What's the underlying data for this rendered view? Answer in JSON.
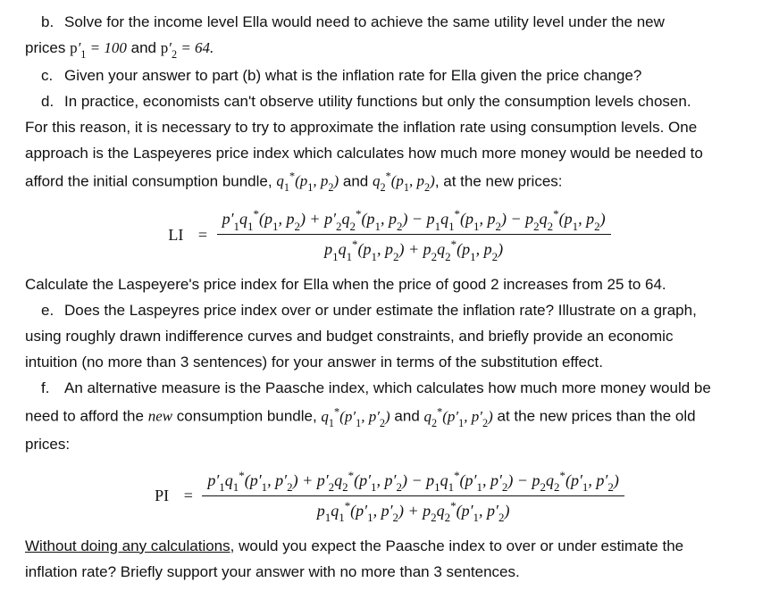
{
  "b": {
    "letter": "b.",
    "text_before": "Solve for the income level Ella would need to achieve the same utility level under the new",
    "text_line2_before": "prices ",
    "eq1_lhs": "p′₁ = 100",
    "and": " and ",
    "eq2_lhs": "p′₂ = 64.",
    "text_line2_after": ""
  },
  "c": {
    "letter": "c.",
    "text": "Given your answer to part (b) what is the inflation rate for Ella given the price change?"
  },
  "d": {
    "letter": "d.",
    "line1": "In practice, economists can't observe utility functions but only the consumption levels chosen.",
    "line2": "For this reason, it is necessary to try to approximate the inflation rate using consumption levels.  One",
    "line3": "approach is the Laspeyeres price index which calculates how much more money would be needed to",
    "line4_before": "afford the initial consumption bundle, ",
    "line4_q1": "q₁*(p₁, p₂)",
    "line4_and": " and ",
    "line4_q2": "q₂*(p₁, p₂)",
    "line4_after": ", at the new prices:"
  },
  "li_formula": {
    "label": "LI",
    "num": "p′₁q₁*(p₁, p₂) + p′₂q₂*(p₁, p₂) − p₁q₁*(p₁, p₂) − p₂q₂*(p₁, p₂)",
    "den": "p₁q₁*(p₁, p₂) + p₂q₂*(p₁, p₂)"
  },
  "calc_line": "Calculate the Laspeyere's price index for Ella when the price of good 2 increases from 25 to 64.",
  "e": {
    "letter": "e.",
    "line1": "Does the Laspeyres price index over or under estimate the inflation rate?  Illustrate on a graph,",
    "line2": "using roughly drawn indifference curves and budget constraints, and briefly provide an economic",
    "line3": "intuition (no more than 3 sentences) for your answer in terms of the substitution effect."
  },
  "f": {
    "letter": "f.",
    "line1": "An alternative measure is the Paasche index, which calculates how much more money would be",
    "line2_before": "need to afford the ",
    "line2_new": "new",
    "line2_mid": " consumption bundle, ",
    "line2_q1": "q₁*(p′₁, p′₂)",
    "line2_and": " and ",
    "line2_q2": "q₂*(p′₁, p′₂)",
    "line2_after": " at the new prices than the old",
    "line3": "prices:"
  },
  "pi_formula": {
    "label": "PI",
    "num": "p′₁q₁*(p′₁, p′₂) + p′₂q₂*(p′₁, p′₂) − p₁q₁*(p′₁, p′₂) − p₂q₂*(p′₁, p′₂)",
    "den": "p₁q₁*(p′₁, p′₂) + p₂q₂*(p′₁, p′₂)"
  },
  "final": {
    "underlined": "Without doing any calculations",
    "rest1": ", would you expect the Paasche index to over or under estimate the",
    "rest2": "inflation rate?  Briefly support your answer with no more than 3 sentences."
  }
}
